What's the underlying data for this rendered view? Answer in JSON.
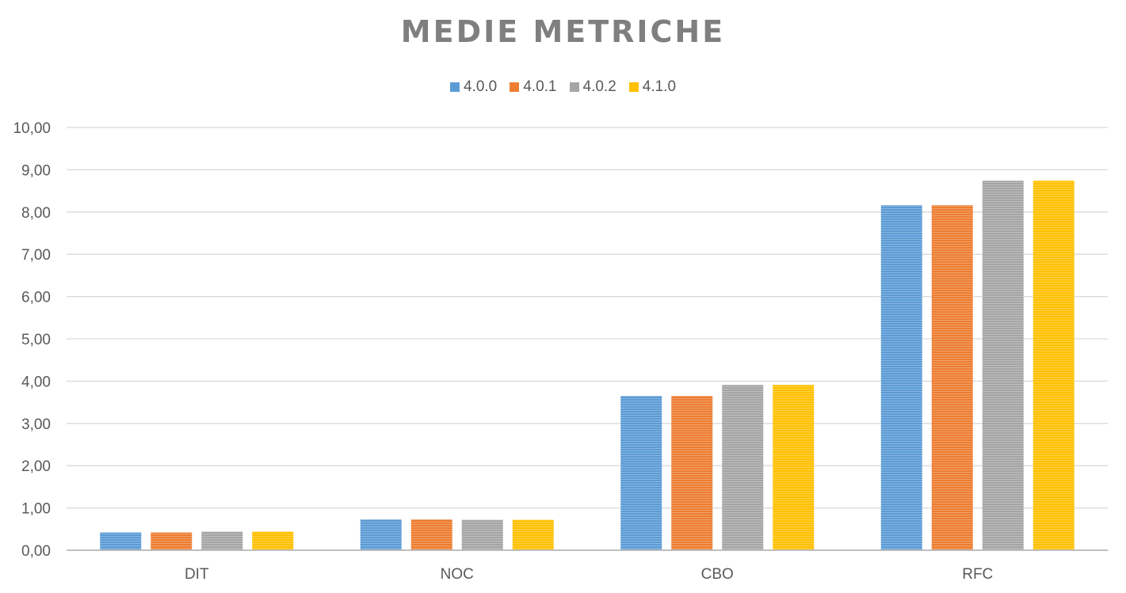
{
  "chart_data": {
    "type": "bar",
    "title": "MEDIE METRICHE",
    "categories": [
      "DIT",
      "NOC",
      "CBO",
      "RFC"
    ],
    "series": [
      {
        "name": "4.0.0",
        "color": "#5b9bd5",
        "values": [
          0.42,
          0.73,
          3.65,
          8.16
        ]
      },
      {
        "name": "4.0.1",
        "color": "#ed7d31",
        "values": [
          0.42,
          0.73,
          3.65,
          8.16
        ]
      },
      {
        "name": "4.0.2",
        "color": "#a5a5a5",
        "values": [
          0.44,
          0.72,
          3.91,
          8.74
        ]
      },
      {
        "name": "4.1.0",
        "color": "#ffc000",
        "values": [
          0.44,
          0.72,
          3.91,
          8.74
        ]
      }
    ],
    "ylim": [
      0,
      10
    ],
    "yticks": [
      "0,00",
      "1,00",
      "2,00",
      "3,00",
      "4,00",
      "5,00",
      "6,00",
      "7,00",
      "8,00",
      "9,00",
      "10,00"
    ],
    "legend_position": "top",
    "grid": true
  }
}
